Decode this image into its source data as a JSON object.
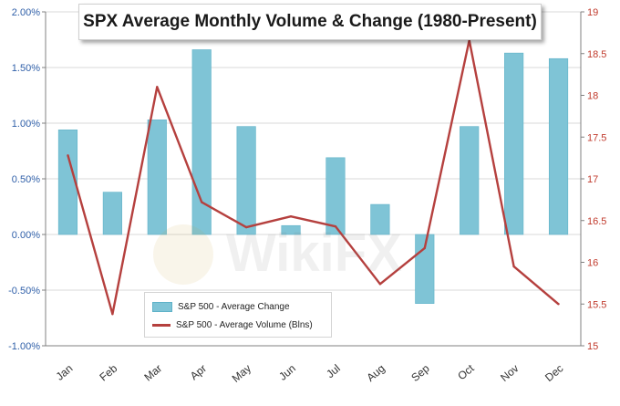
{
  "title": "SPX Average Monthly Volume & Change (1980-Present)",
  "watermark": "WikiFX",
  "colors": {
    "bar": "#7fc4d6",
    "bar_edge": "#5fb2c8",
    "line": "#b5403e",
    "left_axis_text": "#2f5fa8",
    "right_axis_text": "#c0392b",
    "grid": "#d9d9d9"
  },
  "chart_data": {
    "type": "bar",
    "categories": [
      "Jan",
      "Feb",
      "Mar",
      "Apr",
      "May",
      "Jun",
      "Jul",
      "Aug",
      "Sep",
      "Oct",
      "Nov",
      "Dec"
    ],
    "series": [
      {
        "name": "S&P 500 - Average Change",
        "type": "bar",
        "axis": "left",
        "values": [
          0.94,
          0.38,
          1.03,
          1.66,
          0.97,
          0.08,
          0.69,
          0.27,
          -0.62,
          0.97,
          1.63,
          1.58
        ]
      },
      {
        "name": "S&P 500 - Average Volume (Blns)",
        "type": "line",
        "axis": "right",
        "values": [
          17.28,
          15.38,
          18.1,
          16.72,
          16.42,
          16.55,
          16.43,
          15.74,
          16.17,
          18.66,
          15.95,
          15.5
        ]
      }
    ],
    "left_axis": {
      "ylim": [
        -1.0,
        2.0
      ],
      "ticks": [
        "-1.00%",
        "-0.50%",
        "0.00%",
        "0.50%",
        "1.00%",
        "1.50%",
        "2.00%"
      ]
    },
    "right_axis": {
      "ylim": [
        15,
        19
      ],
      "ticks": [
        "15",
        "15.5",
        "16",
        "16.5",
        "17",
        "17.5",
        "18",
        "18.5",
        "19"
      ]
    },
    "grid": "horizontal",
    "legend_position": "bottom-left"
  }
}
